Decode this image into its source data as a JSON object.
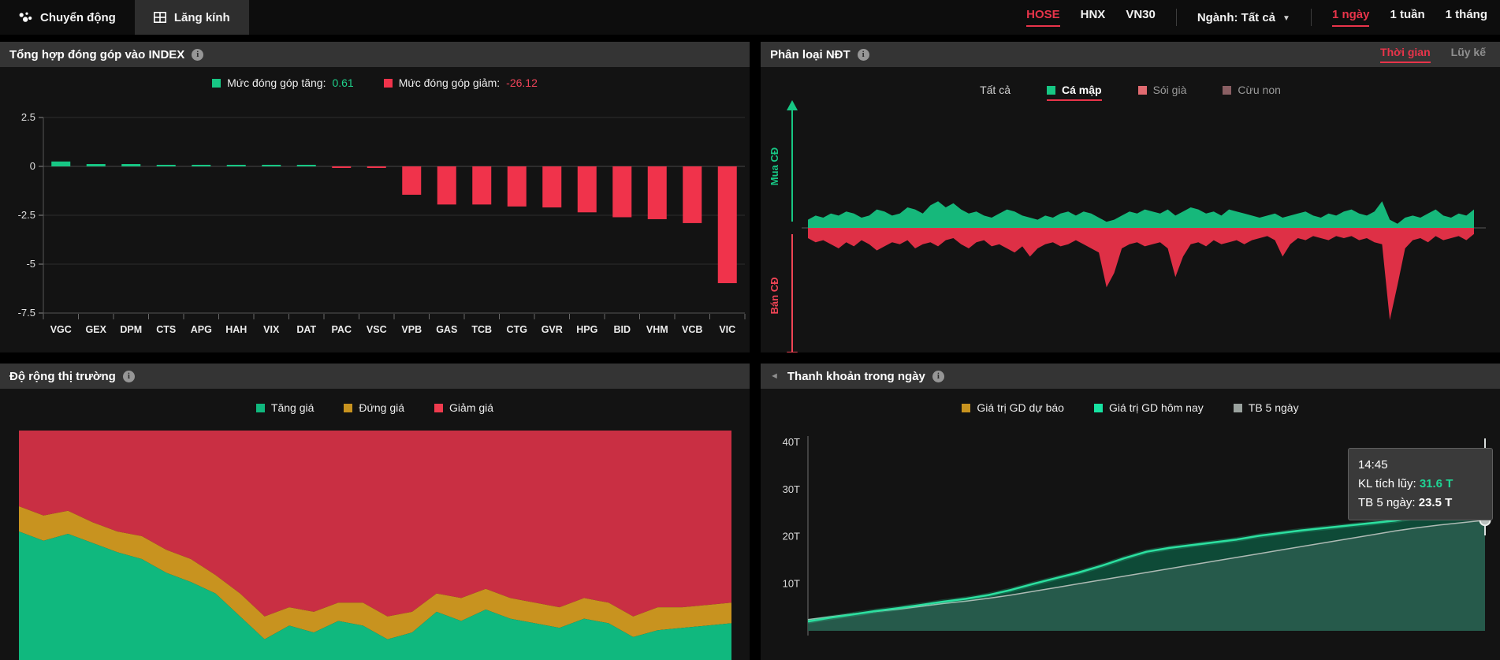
{
  "topbar": {
    "tabs": [
      {
        "label": "Chuyển động"
      },
      {
        "label": "Lăng kính"
      }
    ],
    "exchanges": [
      {
        "label": "HOSE"
      },
      {
        "label": "HNX"
      },
      {
        "label": "VN30"
      }
    ],
    "sector_label": "Ngành: Tất cả",
    "ranges": [
      {
        "label": "1 ngày"
      },
      {
        "label": "1 tuần"
      },
      {
        "label": "1 tháng"
      }
    ]
  },
  "colors": {
    "green": "#17c784",
    "bright_green": "#2ce0a0",
    "red": "#f0334b",
    "accent_red": "#e8344a",
    "gold": "#c8931f",
    "breadth_red": "#c92f43",
    "breadth_green": "#10b87e",
    "gray_line": "#aebab4",
    "tooltip_green": "#1fd695"
  },
  "panel_index": {
    "title": "Tổng hợp đóng góp vào INDEX",
    "legend": {
      "up_label": "Mức đóng góp tăng:",
      "up_value": "0.61",
      "down_label": "Mức đóng góp giảm:",
      "down_value": "-26.12"
    },
    "chart_data": {
      "type": "bar",
      "categories": [
        "VGC",
        "GEX",
        "DPM",
        "CTS",
        "APG",
        "HAH",
        "VIX",
        "DAT",
        "PAC",
        "VSC",
        "VPB",
        "GAS",
        "TCB",
        "CTG",
        "GVR",
        "HPG",
        "BID",
        "VHM",
        "VCB",
        "VIC"
      ],
      "values": [
        0.25,
        0.12,
        0.12,
        0.07,
        0.02,
        0.01,
        0.01,
        0.01,
        -0.05,
        -0.05,
        -1.45,
        -1.95,
        -1.95,
        -2.05,
        -2.1,
        -2.35,
        -2.6,
        -2.7,
        -2.9,
        -5.97
      ],
      "title": "Tổng hợp đóng góp vào INDEX",
      "xlabel": "",
      "ylabel": "",
      "ylim": [
        -7.5,
        2.5
      ],
      "ytick_labels": [
        "2.5",
        "0",
        "-2.5",
        "-5",
        "-7.5"
      ],
      "ytick_values": [
        2.5,
        0,
        -2.5,
        -5,
        -7.5
      ],
      "total_up": 0.61,
      "total_down": -26.12
    }
  },
  "panel_ndt": {
    "title": "Phân loại NĐT",
    "tabs": [
      {
        "label": "Thời gian"
      },
      {
        "label": "Lũy kế"
      }
    ],
    "filters": [
      {
        "label": "Tất cả",
        "swatch": ""
      },
      {
        "label": "Cá mập",
        "swatch": "#17c784"
      },
      {
        "label": "Sói già",
        "swatch": "#e06a70"
      },
      {
        "label": "Cừu non",
        "swatch": "#8a5f63"
      }
    ],
    "axis_up": "Mua CĐ",
    "axis_down": "Bán CĐ",
    "chart_data": {
      "type": "area",
      "baseline": 0,
      "series": [
        {
          "name": "Mua CĐ",
          "values": [
            4,
            6,
            5,
            7,
            6,
            8,
            7,
            5,
            6,
            9,
            8,
            6,
            7,
            10,
            9,
            7,
            11,
            13,
            10,
            12,
            9,
            7,
            8,
            6,
            5,
            7,
            9,
            8,
            6,
            5,
            4,
            6,
            5,
            7,
            8,
            6,
            8,
            7,
            5,
            3,
            4,
            6,
            8,
            7,
            9,
            8,
            7,
            9,
            6,
            8,
            10,
            9,
            7,
            8,
            6,
            9,
            8,
            7,
            6,
            5,
            6,
            7,
            5,
            6,
            7,
            8,
            6,
            5,
            7,
            6,
            8,
            9,
            7,
            6,
            8,
            13,
            4,
            2,
            5,
            6,
            5,
            7,
            9,
            6,
            5,
            7,
            6,
            9
          ]
        },
        {
          "name": "Bán CĐ",
          "values": [
            -5,
            -7,
            -6,
            -8,
            -10,
            -7,
            -9,
            -6,
            -8,
            -11,
            -9,
            -7,
            -8,
            -6,
            -10,
            -8,
            -7,
            -9,
            -6,
            -5,
            -8,
            -10,
            -7,
            -6,
            -9,
            -8,
            -10,
            -12,
            -9,
            -14,
            -10,
            -8,
            -7,
            -9,
            -8,
            -6,
            -8,
            -10,
            -12,
            -29,
            -22,
            -10,
            -8,
            -7,
            -9,
            -8,
            -7,
            -10,
            -24,
            -14,
            -8,
            -7,
            -9,
            -6,
            -8,
            -7,
            -6,
            -8,
            -6,
            -5,
            -4,
            -6,
            -14,
            -8,
            -5,
            -6,
            -4,
            -5,
            -6,
            -4,
            -5,
            -4,
            -6,
            -5,
            -7,
            -8,
            -45,
            -28,
            -10,
            -6,
            -5,
            -7,
            -4,
            -6,
            -5,
            -4,
            -6,
            -3
          ]
        }
      ]
    }
  },
  "panel_breadth": {
    "title": "Độ rộng thị trường",
    "legend": [
      {
        "label": "Tăng giá",
        "swatch": "#10b87e"
      },
      {
        "label": "Đứng giá",
        "swatch": "#c8931f"
      },
      {
        "label": "Giảm giá",
        "swatch": "#ef3b4e"
      }
    ],
    "chart_data": {
      "type": "area",
      "stack": "percent",
      "order_top_to_bottom": [
        "Giảm giá",
        "Đứng giá",
        "Tăng giá"
      ],
      "gold_top_fraction": [
        0.33,
        0.37,
        0.35,
        0.4,
        0.44,
        0.46,
        0.52,
        0.56,
        0.63,
        0.71,
        0.81,
        0.77,
        0.79,
        0.75,
        0.75,
        0.81,
        0.79,
        0.71,
        0.73,
        0.69,
        0.73,
        0.75,
        0.77,
        0.73,
        0.75,
        0.81,
        0.77,
        0.77,
        0.76,
        0.75
      ],
      "green_top_fraction": [
        0.44,
        0.48,
        0.45,
        0.49,
        0.53,
        0.56,
        0.62,
        0.66,
        0.71,
        0.81,
        0.91,
        0.85,
        0.88,
        0.83,
        0.85,
        0.91,
        0.88,
        0.79,
        0.83,
        0.78,
        0.82,
        0.84,
        0.86,
        0.82,
        0.84,
        0.9,
        0.87,
        0.86,
        0.85,
        0.84
      ]
    }
  },
  "panel_liquidity": {
    "title": "Thanh khoản trong ngày",
    "legend": [
      {
        "label": "Giá trị GD dự báo",
        "swatch": "#c8931f"
      },
      {
        "label": "Giá trị GD hôm nay",
        "swatch": "#17e3a2"
      },
      {
        "label": "TB 5 ngày",
        "swatch": "#9aa29e"
      }
    ],
    "tooltip": {
      "time": "14:45",
      "kl_label": "KL tích lũy:",
      "kl_value": "31.6 T",
      "tb_label": "TB 5 ngày:",
      "tb_value": "23.5 T"
    },
    "chart_data": {
      "type": "line",
      "ylabel": "",
      "ytick_labels": [
        "40T",
        "30T",
        "20T",
        "10T"
      ],
      "ytick_values": [
        40,
        30,
        20,
        10
      ],
      "ylim": [
        0,
        42
      ],
      "series": [
        {
          "name": "Giá trị GD hôm nay",
          "values": [
            2.0,
            2.8,
            3.5,
            4.2,
            4.8,
            5.5,
            6.2,
            6.8,
            7.6,
            8.7,
            10.0,
            11.2,
            12.4,
            13.8,
            15.4,
            16.8,
            17.6,
            18.2,
            18.8,
            19.4,
            20.2,
            20.8,
            21.4,
            21.9,
            22.4,
            22.9,
            23.4,
            24.2,
            26.5,
            29.5,
            31.6
          ]
        },
        {
          "name": "TB 5 ngày",
          "values": [
            2.4,
            3.0,
            3.6,
            4.1,
            4.6,
            5.2,
            5.8,
            6.3,
            6.9,
            7.6,
            8.4,
            9.2,
            10.0,
            10.8,
            11.6,
            12.4,
            13.2,
            14.0,
            14.8,
            15.6,
            16.4,
            17.2,
            18.0,
            18.8,
            19.6,
            20.4,
            21.2,
            21.9,
            22.5,
            23.0,
            23.5
          ]
        }
      ],
      "end_time": "14:45",
      "end_values": {
        "KL tích lũy": 31.6,
        "TB 5 ngày": 23.5
      }
    }
  }
}
